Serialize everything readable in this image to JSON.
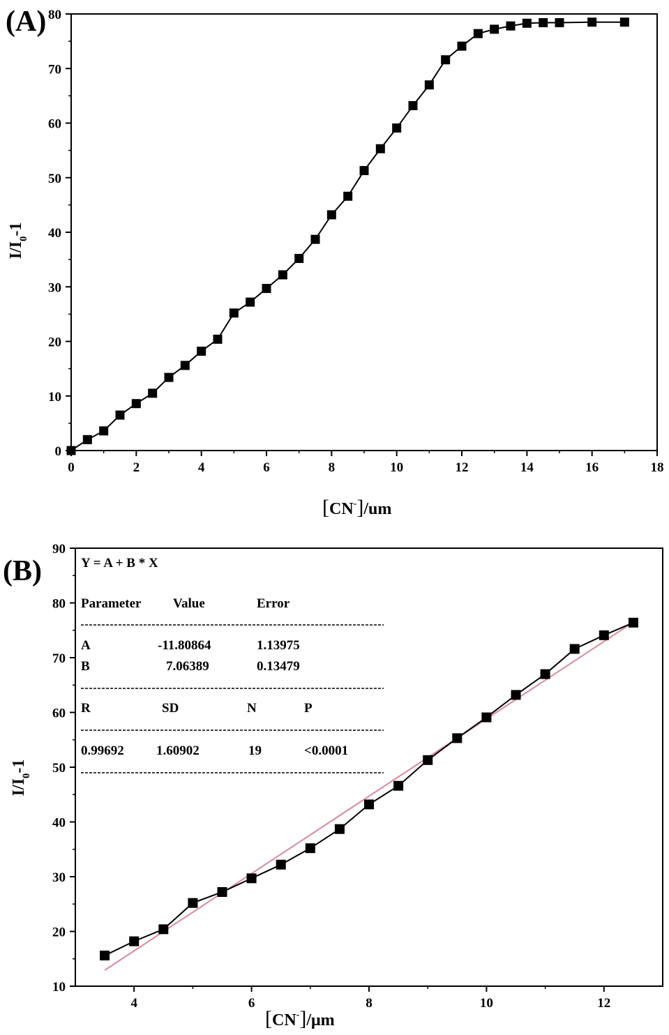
{
  "chart_data": [
    {
      "type": "line",
      "panel_label": "(A)",
      "xlabel_main": "CN",
      "xlabel_sup": "-",
      "xlabel_unit": "/um",
      "ylabel_main": "I/I",
      "ylabel_sub": "0",
      "ylabel_tail": "-1",
      "xlim": [
        0,
        18
      ],
      "ylim": [
        0,
        80
      ],
      "xticks": [
        0,
        2,
        4,
        6,
        8,
        10,
        12,
        14,
        16,
        18
      ],
      "yticks": [
        0,
        10,
        20,
        30,
        40,
        50,
        60,
        70,
        80
      ],
      "grid": false,
      "marker": "square",
      "series": [
        {
          "x": [
            0,
            0.5,
            1,
            1.5,
            2,
            2.5,
            3,
            3.5,
            4,
            4.5,
            5,
            5.5,
            6,
            6.5,
            7,
            7.5,
            8,
            8.5,
            9,
            9.5,
            10,
            10.5,
            11,
            11.5,
            12,
            12.5,
            13,
            13.5,
            14,
            14.5,
            15,
            16,
            17
          ],
          "y": [
            0,
            2.0,
            3.6,
            6.5,
            8.6,
            10.5,
            13.4,
            15.6,
            18.2,
            20.4,
            25.2,
            27.2,
            29.7,
            32.2,
            35.2,
            38.7,
            43.2,
            46.6,
            51.3,
            55.3,
            59.1,
            63.2,
            67.0,
            71.6,
            74.1,
            76.4,
            77.2,
            77.8,
            78.3,
            78.4,
            78.4,
            78.5,
            78.5
          ]
        }
      ]
    },
    {
      "type": "line",
      "panel_label": "(B)",
      "xlabel_main": "CN",
      "xlabel_sup": "-",
      "xlabel_unit": "/μm",
      "ylabel_main": "I/I",
      "ylabel_sub": "0",
      "ylabel_tail": "-1",
      "xlim": [
        3,
        13
      ],
      "ylim": [
        10,
        90
      ],
      "xticks": [
        4,
        6,
        8,
        10,
        12
      ],
      "yticks": [
        10,
        20,
        30,
        40,
        50,
        60,
        70,
        80,
        90
      ],
      "grid": false,
      "marker": "square",
      "series": [
        {
          "x": [
            3.5,
            4,
            4.5,
            5,
            5.5,
            6,
            6.5,
            7,
            7.5,
            8,
            8.5,
            9,
            9.5,
            10,
            10.5,
            11,
            11.5,
            12,
            12.5
          ],
          "y": [
            15.6,
            18.2,
            20.4,
            25.2,
            27.2,
            29.7,
            32.2,
            35.2,
            38.7,
            43.2,
            46.6,
            51.3,
            55.3,
            59.1,
            63.2,
            67.0,
            71.6,
            74.1,
            76.4
          ]
        }
      ],
      "fit_line": {
        "color": "#d98a9a",
        "intercept": -11.80864,
        "slope": 7.06389,
        "x_range": [
          3.5,
          12.5
        ]
      },
      "fit_table": {
        "equation": "Y = A + B * X",
        "header": [
          "Parameter",
          "Value",
          "Error"
        ],
        "rows": [
          [
            "A",
            "-11.80864",
            "1.13975"
          ],
          [
            "B",
            "7.06389",
            "0.13479"
          ]
        ],
        "stats_header": [
          "R",
          "SD",
          "N",
          "P"
        ],
        "stats_values": [
          "0.99692",
          "1.60902",
          "19",
          "<0.0001"
        ]
      }
    }
  ]
}
